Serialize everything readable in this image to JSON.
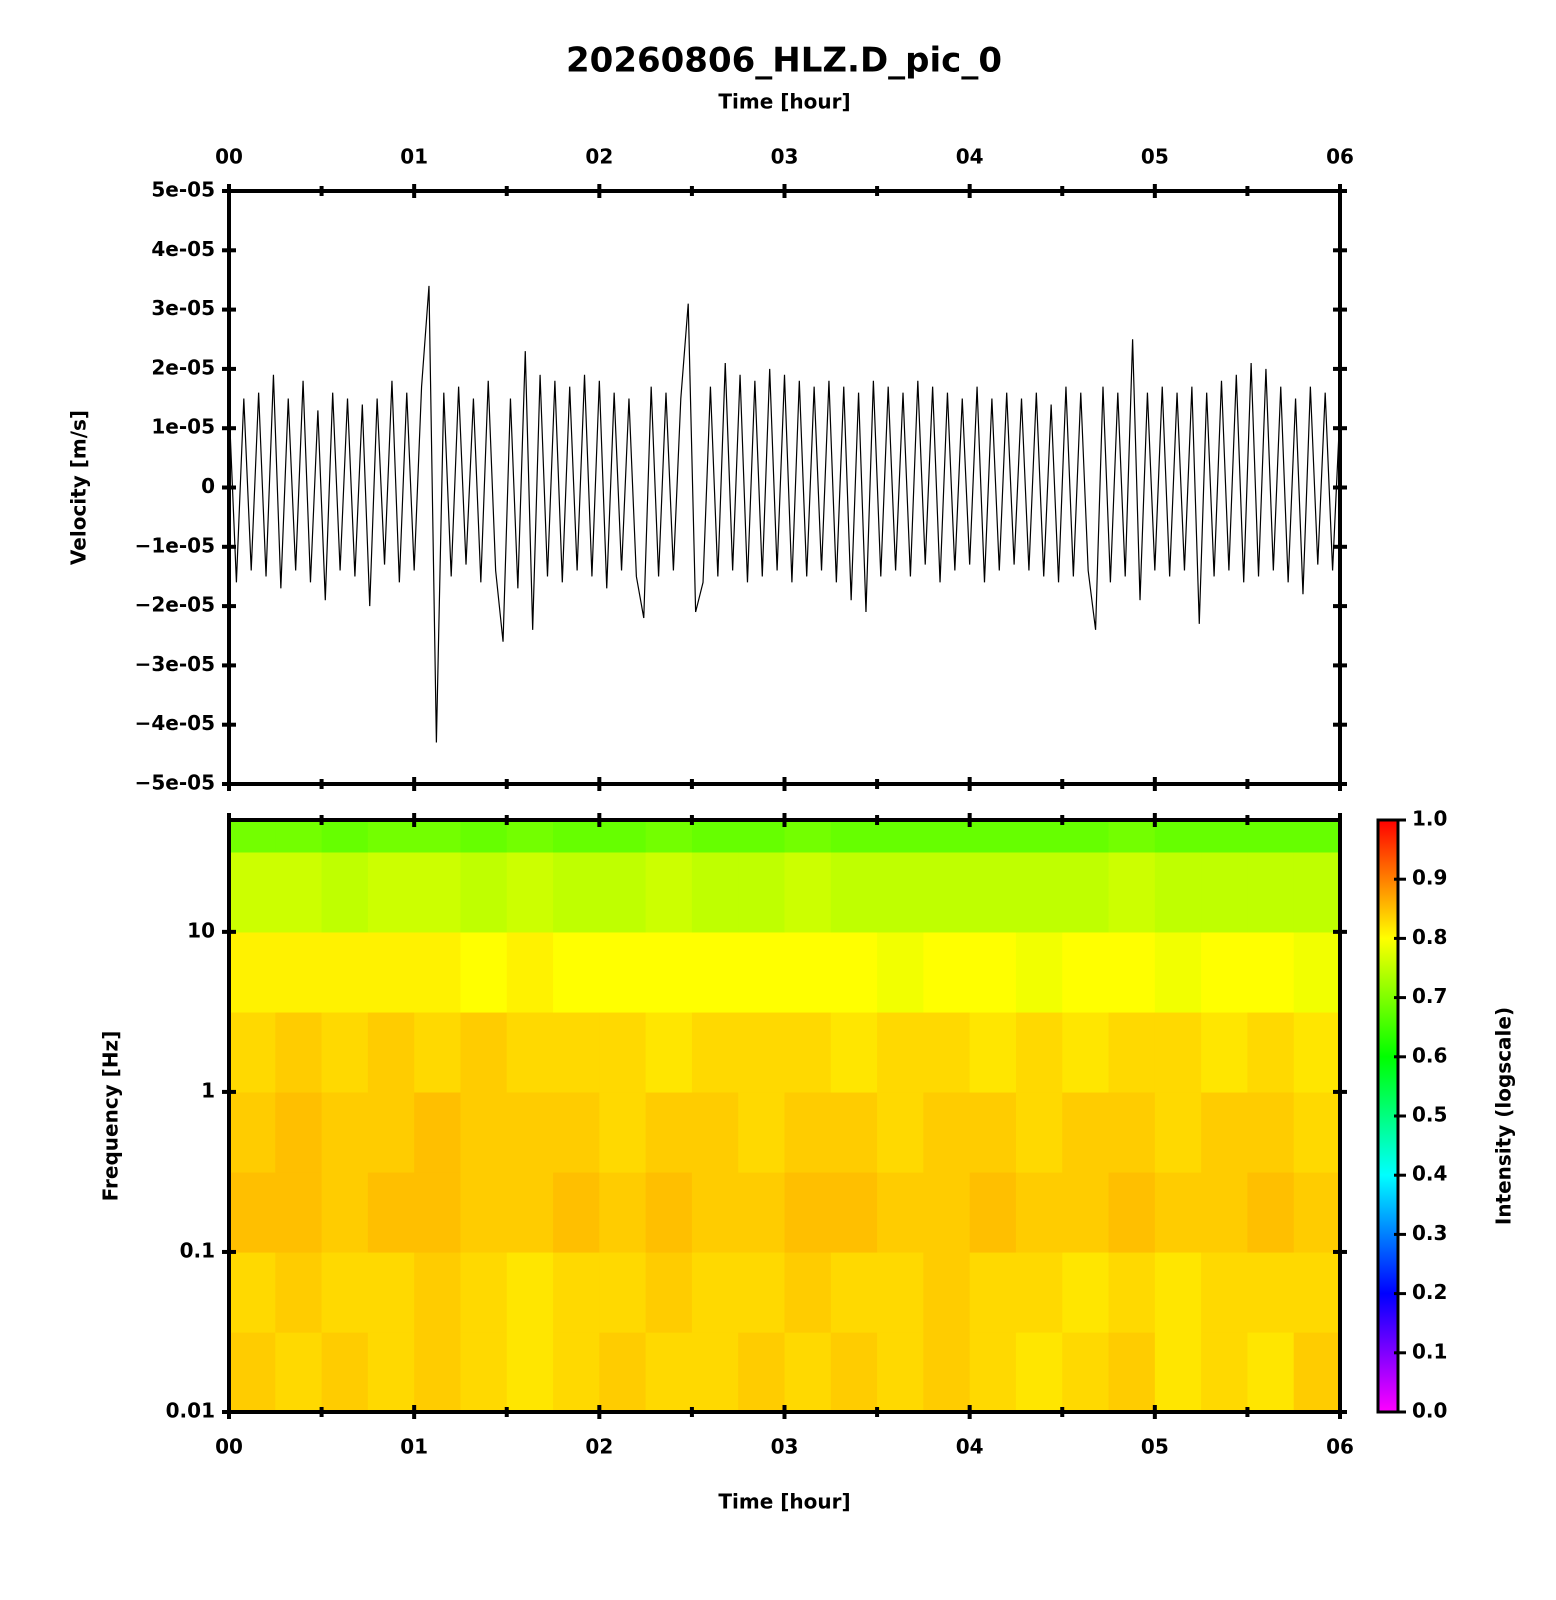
{
  "chart_data": [
    {
      "type": "line",
      "title": "20260806_HLZ.D_pic_0",
      "xlabel": "Time [hour]",
      "ylabel": "Velocity [m/s]",
      "color": "#000000",
      "xlim": [
        0,
        6
      ],
      "xticks": [
        {
          "value": 0,
          "label": "00"
        },
        {
          "value": 1,
          "label": "01"
        },
        {
          "value": 2,
          "label": "02"
        },
        {
          "value": 3,
          "label": "03"
        },
        {
          "value": 4,
          "label": "04"
        },
        {
          "value": 5,
          "label": "05"
        },
        {
          "value": 6,
          "label": "06"
        }
      ],
      "xminorticks": [
        0.5,
        1.5,
        2.5,
        3.5,
        4.5,
        5.5
      ],
      "ylim": [
        -5e-05,
        5e-05
      ],
      "yticks": [
        {
          "value": -5e-05,
          "label": "−5e-05"
        },
        {
          "value": -4e-05,
          "label": "−4e-05"
        },
        {
          "value": -3e-05,
          "label": "−3e-05"
        },
        {
          "value": -2e-05,
          "label": "−2e-05"
        },
        {
          "value": -1e-05,
          "label": "−1e-05"
        },
        0,
        {
          "value": 1e-05,
          "label": "1e-05"
        },
        {
          "value": 2e-05,
          "label": "2e-05"
        },
        {
          "value": 3e-05,
          "label": "3e-05"
        },
        {
          "value": 4e-05,
          "label": "4e-05"
        },
        {
          "value": 5e-05,
          "label": "5e-05"
        }
      ],
      "x": [
        0,
        0.04,
        0.08,
        0.12,
        0.16,
        0.2,
        0.24,
        0.28,
        0.32,
        0.36,
        0.4,
        0.44,
        0.48,
        0.52,
        0.56,
        0.6,
        0.64,
        0.68,
        0.72,
        0.76,
        0.8,
        0.84,
        0.88,
        0.92,
        0.96,
        1,
        1.04,
        1.08,
        1.12,
        1.16,
        1.2,
        1.24,
        1.28,
        1.32,
        1.36,
        1.4,
        1.44,
        1.48,
        1.52,
        1.56,
        1.6,
        1.64,
        1.68,
        1.72,
        1.76,
        1.8,
        1.84,
        1.88,
        1.92,
        1.96,
        2,
        2.04,
        2.08,
        2.12,
        2.16,
        2.2,
        2.24,
        2.28,
        2.32,
        2.36,
        2.4,
        2.44,
        2.48,
        2.52,
        2.56,
        2.6,
        2.64,
        2.68,
        2.72,
        2.76,
        2.8,
        2.84,
        2.88,
        2.92,
        2.96,
        3,
        3.04,
        3.08,
        3.12,
        3.16,
        3.2,
        3.24,
        3.28,
        3.32,
        3.36,
        3.4,
        3.44,
        3.48,
        3.52,
        3.56,
        3.6,
        3.64,
        3.68,
        3.72,
        3.76,
        3.8,
        3.84,
        3.88,
        3.92,
        3.96,
        4,
        4.04,
        4.08,
        4.12,
        4.16,
        4.2,
        4.24,
        4.28,
        4.32,
        4.36,
        4.4,
        4.44,
        4.48,
        4.52,
        4.56,
        4.6,
        4.64,
        4.68,
        4.72,
        4.76,
        4.8,
        4.84,
        4.88,
        4.92,
        4.96,
        5,
        5.04,
        5.08,
        5.12,
        5.16,
        5.2,
        5.24,
        5.28,
        5.32,
        5.36,
        5.4,
        5.44,
        5.48,
        5.52,
        5.56,
        5.6,
        5.64,
        5.68,
        5.72,
        5.76,
        5.8,
        5.84,
        5.88,
        5.92,
        5.96,
        6
      ],
      "values": [
        1.4e-05,
        -1.6e-05,
        1.5e-05,
        -1.4e-05,
        1.6e-05,
        -1.5e-05,
        1.9e-05,
        -1.7e-05,
        1.5e-05,
        -1.4e-05,
        1.8e-05,
        -1.6e-05,
        1.3e-05,
        -1.9e-05,
        1.6e-05,
        -1.4e-05,
        1.5e-05,
        -1.5e-05,
        1.4e-05,
        -2e-05,
        1.5e-05,
        -1.3e-05,
        1.8e-05,
        -1.6e-05,
        1.6e-05,
        -1.4e-05,
        1.7e-05,
        3.4e-05,
        -4.3e-05,
        1.6e-05,
        -1.5e-05,
        1.7e-05,
        -1.3e-05,
        1.5e-05,
        -1.6e-05,
        1.8e-05,
        -1.4e-05,
        -2.6e-05,
        1.5e-05,
        -1.7e-05,
        2.3e-05,
        -2.4e-05,
        1.9e-05,
        -1.5e-05,
        1.8e-05,
        -1.6e-05,
        1.7e-05,
        -1.4e-05,
        1.9e-05,
        -1.5e-05,
        1.8e-05,
        -1.7e-05,
        1.6e-05,
        -1.4e-05,
        1.5e-05,
        -1.5e-05,
        -2.2e-05,
        1.7e-05,
        -1.5e-05,
        1.6e-05,
        -1.4e-05,
        1.5e-05,
        3.1e-05,
        -2.1e-05,
        -1.6e-05,
        1.7e-05,
        -1.5e-05,
        2.1e-05,
        -1.4e-05,
        1.9e-05,
        -1.6e-05,
        1.8e-05,
        -1.5e-05,
        2e-05,
        -1.4e-05,
        1.9e-05,
        -1.6e-05,
        1.8e-05,
        -1.5e-05,
        1.7e-05,
        -1.4e-05,
        1.8e-05,
        -1.6e-05,
        1.7e-05,
        -1.9e-05,
        1.6e-05,
        -2.1e-05,
        1.8e-05,
        -1.5e-05,
        1.7e-05,
        -1.4e-05,
        1.6e-05,
        -1.5e-05,
        1.8e-05,
        -1.3e-05,
        1.7e-05,
        -1.6e-05,
        1.6e-05,
        -1.4e-05,
        1.5e-05,
        -1.3e-05,
        1.7e-05,
        -1.6e-05,
        1.5e-05,
        -1.4e-05,
        1.6e-05,
        -1.3e-05,
        1.5e-05,
        -1.4e-05,
        1.6e-05,
        -1.5e-05,
        1.4e-05,
        -1.6e-05,
        1.7e-05,
        -1.5e-05,
        1.6e-05,
        -1.4e-05,
        -2.4e-05,
        1.7e-05,
        -1.6e-05,
        1.6e-05,
        -1.5e-05,
        2.5e-05,
        -1.9e-05,
        1.6e-05,
        -1.4e-05,
        1.7e-05,
        -1.5e-05,
        1.6e-05,
        -1.4e-05,
        1.7e-05,
        -2.3e-05,
        1.6e-05,
        -1.5e-05,
        1.8e-05,
        -1.4e-05,
        1.9e-05,
        -1.6e-05,
        2.1e-05,
        -1.5e-05,
        2e-05,
        -1.4e-05,
        1.7e-05,
        -1.6e-05,
        1.5e-05,
        -1.8e-05,
        1.7e-05,
        -1.3e-05,
        1.6e-05,
        -1.4e-05,
        1.3e-05
      ]
    },
    {
      "type": "heatmap",
      "xlabel": "Time [hour]",
      "ylabel": "Frequency [Hz]",
      "colorbar_label": "Intensity (logscale)",
      "xlim": [
        0,
        6
      ],
      "xticks": [
        {
          "value": 0,
          "label": "00"
        },
        {
          "value": 1,
          "label": "01"
        },
        {
          "value": 2,
          "label": "02"
        },
        {
          "value": 3,
          "label": "03"
        },
        {
          "value": 4,
          "label": "04"
        },
        {
          "value": 5,
          "label": "05"
        },
        {
          "value": 6,
          "label": "06"
        }
      ],
      "xminorticks": [
        0.5,
        1.5,
        2.5,
        3.5,
        4.5,
        5.5
      ],
      "ylim": [
        0.01,
        50
      ],
      "log_y": true,
      "yticks": [
        0.01,
        0.1,
        1,
        10
      ],
      "colormap": [
        "#ff00ff",
        "#0000ff",
        "#00ffff",
        "#00ff00",
        "#ffff00",
        "#ff0000"
      ],
      "zlim": [
        0,
        1
      ],
      "zticks": [
        {
          "value": 0,
          "label": "0.0"
        },
        0.1,
        0.2,
        0.3,
        0.4,
        0.5,
        0.6,
        0.7,
        0.8,
        0.9,
        {
          "value": 1,
          "label": "1.0"
        }
      ],
      "x": [
        0,
        0.25,
        0.5,
        0.75,
        1,
        1.25,
        1.5,
        1.75,
        2,
        2.25,
        2.5,
        2.75,
        3,
        3.25,
        3.5,
        3.75,
        4,
        4.25,
        4.5,
        4.75,
        5,
        5.25,
        5.5,
        5.75,
        6
      ],
      "y": [
        0.01,
        0.0316,
        0.1,
        0.316,
        1,
        3.16,
        10,
        31.6,
        50
      ],
      "z": [
        [
          0.84,
          0.83,
          0.84,
          0.83,
          0.84,
          0.83,
          0.82,
          0.83,
          0.84,
          0.83,
          0.83,
          0.84,
          0.83,
          0.84,
          0.83,
          0.84,
          0.83,
          0.82,
          0.83,
          0.84,
          0.82,
          0.83,
          0.82,
          0.84
        ],
        [
          0.83,
          0.84,
          0.83,
          0.83,
          0.84,
          0.83,
          0.82,
          0.83,
          0.83,
          0.84,
          0.83,
          0.83,
          0.84,
          0.83,
          0.83,
          0.84,
          0.83,
          0.83,
          0.82,
          0.83,
          0.82,
          0.83,
          0.83,
          0.83
        ],
        [
          0.85,
          0.85,
          0.84,
          0.85,
          0.85,
          0.84,
          0.84,
          0.85,
          0.84,
          0.85,
          0.84,
          0.84,
          0.85,
          0.85,
          0.84,
          0.84,
          0.85,
          0.84,
          0.84,
          0.85,
          0.84,
          0.84,
          0.85,
          0.84
        ],
        [
          0.84,
          0.85,
          0.84,
          0.84,
          0.85,
          0.84,
          0.84,
          0.84,
          0.83,
          0.84,
          0.84,
          0.83,
          0.84,
          0.84,
          0.83,
          0.84,
          0.84,
          0.83,
          0.84,
          0.84,
          0.83,
          0.84,
          0.84,
          0.83
        ],
        [
          0.83,
          0.84,
          0.83,
          0.84,
          0.83,
          0.84,
          0.83,
          0.83,
          0.83,
          0.82,
          0.83,
          0.83,
          0.83,
          0.82,
          0.83,
          0.83,
          0.82,
          0.83,
          0.82,
          0.83,
          0.83,
          0.82,
          0.83,
          0.82
        ],
        [
          0.81,
          0.81,
          0.81,
          0.81,
          0.81,
          0.8,
          0.81,
          0.8,
          0.8,
          0.8,
          0.8,
          0.8,
          0.8,
          0.8,
          0.79,
          0.8,
          0.8,
          0.79,
          0.8,
          0.8,
          0.79,
          0.8,
          0.8,
          0.79
        ],
        [
          0.76,
          0.76,
          0.75,
          0.76,
          0.76,
          0.75,
          0.76,
          0.75,
          0.75,
          0.76,
          0.75,
          0.75,
          0.76,
          0.75,
          0.75,
          0.75,
          0.75,
          0.75,
          0.75,
          0.76,
          0.75,
          0.75,
          0.75,
          0.75
        ],
        [
          0.69,
          0.69,
          0.68,
          0.69,
          0.69,
          0.68,
          0.69,
          0.68,
          0.68,
          0.69,
          0.68,
          0.68,
          0.69,
          0.68,
          0.68,
          0.68,
          0.68,
          0.68,
          0.68,
          0.69,
          0.68,
          0.68,
          0.68,
          0.68
        ]
      ]
    }
  ]
}
